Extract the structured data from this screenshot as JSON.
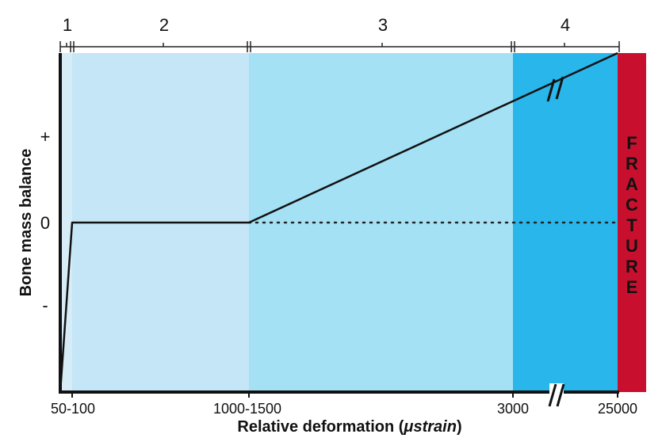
{
  "chart_data": {
    "type": "line",
    "title": "",
    "xlabel_main": "Relative deformation (",
    "xlabel_unit": "μstrain",
    "xlabel_close": ")",
    "ylabel": "Bone mass balance",
    "x_tick_labels": [
      "50-100",
      "1000-1500",
      "3000",
      "25000"
    ],
    "y_tick_labels": [
      "+",
      "0",
      "-"
    ],
    "zones": [
      {
        "label": "1",
        "color": "#d6ecf6"
      },
      {
        "label": "2",
        "color": "#c5e6f6"
      },
      {
        "label": "3",
        "color": "#a4e1f4"
      },
      {
        "label": "4",
        "color": "#29b6ea"
      }
    ],
    "fracture": {
      "text": "FRACTURE",
      "color": "#c8102e",
      "letter_color": "#1a1a1a"
    },
    "series": [
      {
        "points": [
          {
            "x": "0",
            "y": "min"
          },
          {
            "x": "50-100",
            "y": 0
          },
          {
            "x": "1000-1500",
            "y": 0
          },
          {
            "x": "25000",
            "y": "max"
          }
        ]
      }
    ],
    "baseline": {
      "y": 0,
      "style": "dotted"
    },
    "axis_break": true
  }
}
